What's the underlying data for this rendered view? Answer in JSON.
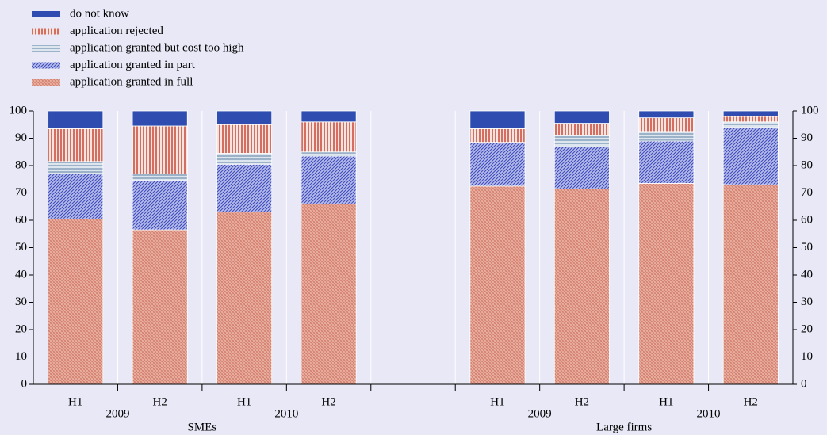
{
  "chart_data": {
    "type": "stacked_bar",
    "categories": [
      "H1",
      "H2",
      "H1",
      "H2",
      null,
      "H1",
      "H2",
      "H1",
      "H2"
    ],
    "years": [
      "2009",
      "2010",
      "2009",
      "2010"
    ],
    "groups": [
      "SMEs",
      "Large firms"
    ],
    "series": [
      {
        "name": "do not know",
        "color": "#2f4db0",
        "pattern": "solid",
        "values": [
          6.5,
          5.5,
          5,
          4,
          null,
          6.5,
          4.5,
          2.5,
          2
        ]
      },
      {
        "name": "application rejected",
        "color": "#c83a2a",
        "pattern": "vertical",
        "values": [
          12,
          17.5,
          10.5,
          11,
          null,
          5,
          4.5,
          5,
          2
        ]
      },
      {
        "name": "application granted but cost too high",
        "color": "#7f9cb8",
        "pattern": "horizontal",
        "values": [
          4.5,
          2.5,
          4,
          1.5,
          null,
          0,
          4,
          3.5,
          2
        ]
      },
      {
        "name": "application granted in part",
        "color": "#3a4ab8",
        "pattern": "diagonal",
        "values": [
          16.5,
          18,
          17.5,
          17.5,
          null,
          16,
          15.5,
          15.5,
          21
        ]
      },
      {
        "name": "application granted in full",
        "color": "#d07a68",
        "pattern": "crosshatch",
        "values": [
          60.5,
          56.5,
          63,
          66,
          null,
          72.5,
          71.5,
          73.5,
          73
        ]
      }
    ],
    "ylim": [
      0,
      100
    ],
    "yticks": [
      0,
      10,
      20,
      30,
      40,
      50,
      60,
      70,
      80,
      90,
      100
    ],
    "y2lim": [
      0,
      100
    ],
    "y2ticks": [
      0,
      10,
      20,
      30,
      40,
      50,
      60,
      70,
      80,
      90,
      100
    ],
    "legend": "top-left"
  }
}
